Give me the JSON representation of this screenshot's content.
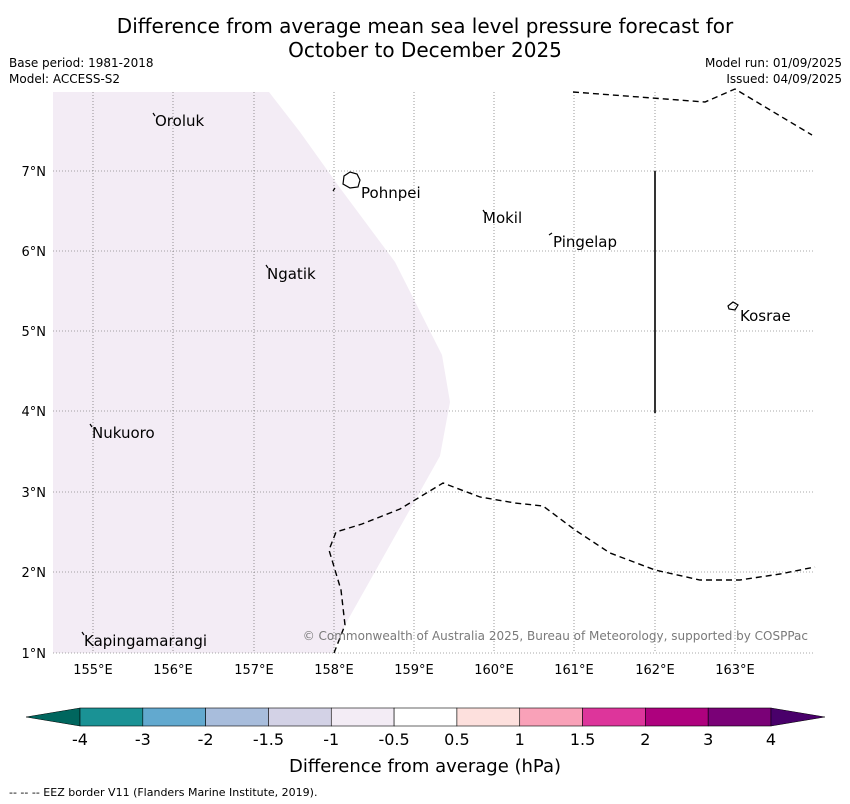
{
  "title_line1": "Difference from average mean sea level pressure forecast for",
  "title_line2": "October to December 2025",
  "meta": {
    "base_period": "Base period: 1981-2018",
    "model": "Model: ACCESS-S2",
    "model_run": "Model run: 01/09/2025",
    "issued": "Issued: 04/09/2025"
  },
  "map": {
    "lon_ticks": [
      "155°E",
      "156°E",
      "157°E",
      "158°E",
      "159°E",
      "160°E",
      "161°E",
      "162°E",
      "163°E"
    ],
    "lat_ticks": [
      "7°N",
      "6°N",
      "5°N",
      "4°N",
      "3°N",
      "2°N",
      "1°N"
    ],
    "places": {
      "oroluk": "Oroluk",
      "pohnpei": "Pohnpei",
      "mokil": "Mokil",
      "pingelap": "Pingelap",
      "ngatik": "Ngatik",
      "kosrae": "Kosrae",
      "nukuoro": "Nukuoro",
      "kapingamarangi": "Kapingamarangi"
    },
    "anomaly_fill_color": "#f3ecf5",
    "copyright": "© Commonwealth of Australia 2025, Bureau of Meteorology, supported by COSPPac"
  },
  "colorbar": {
    "title": "Difference from average (hPa)",
    "labels": [
      "-4",
      "-3",
      "-2",
      "-1.5",
      "-1",
      "-0.5",
      "0.5",
      "1",
      "1.5",
      "2",
      "3",
      "4"
    ],
    "colors": [
      "#00665e",
      "#1a9295",
      "#62a9cf",
      "#a8bddc",
      "#d3d2e6",
      "#f3ecf5",
      "#ffffff",
      "#fde0dd",
      "#f9a1b8",
      "#dd359b",
      "#ae017e",
      "#7a0177",
      "#49006a"
    ]
  },
  "footnote": "--  --  -- EEZ border V11 (Flanders Marine Institute, 2019)."
}
